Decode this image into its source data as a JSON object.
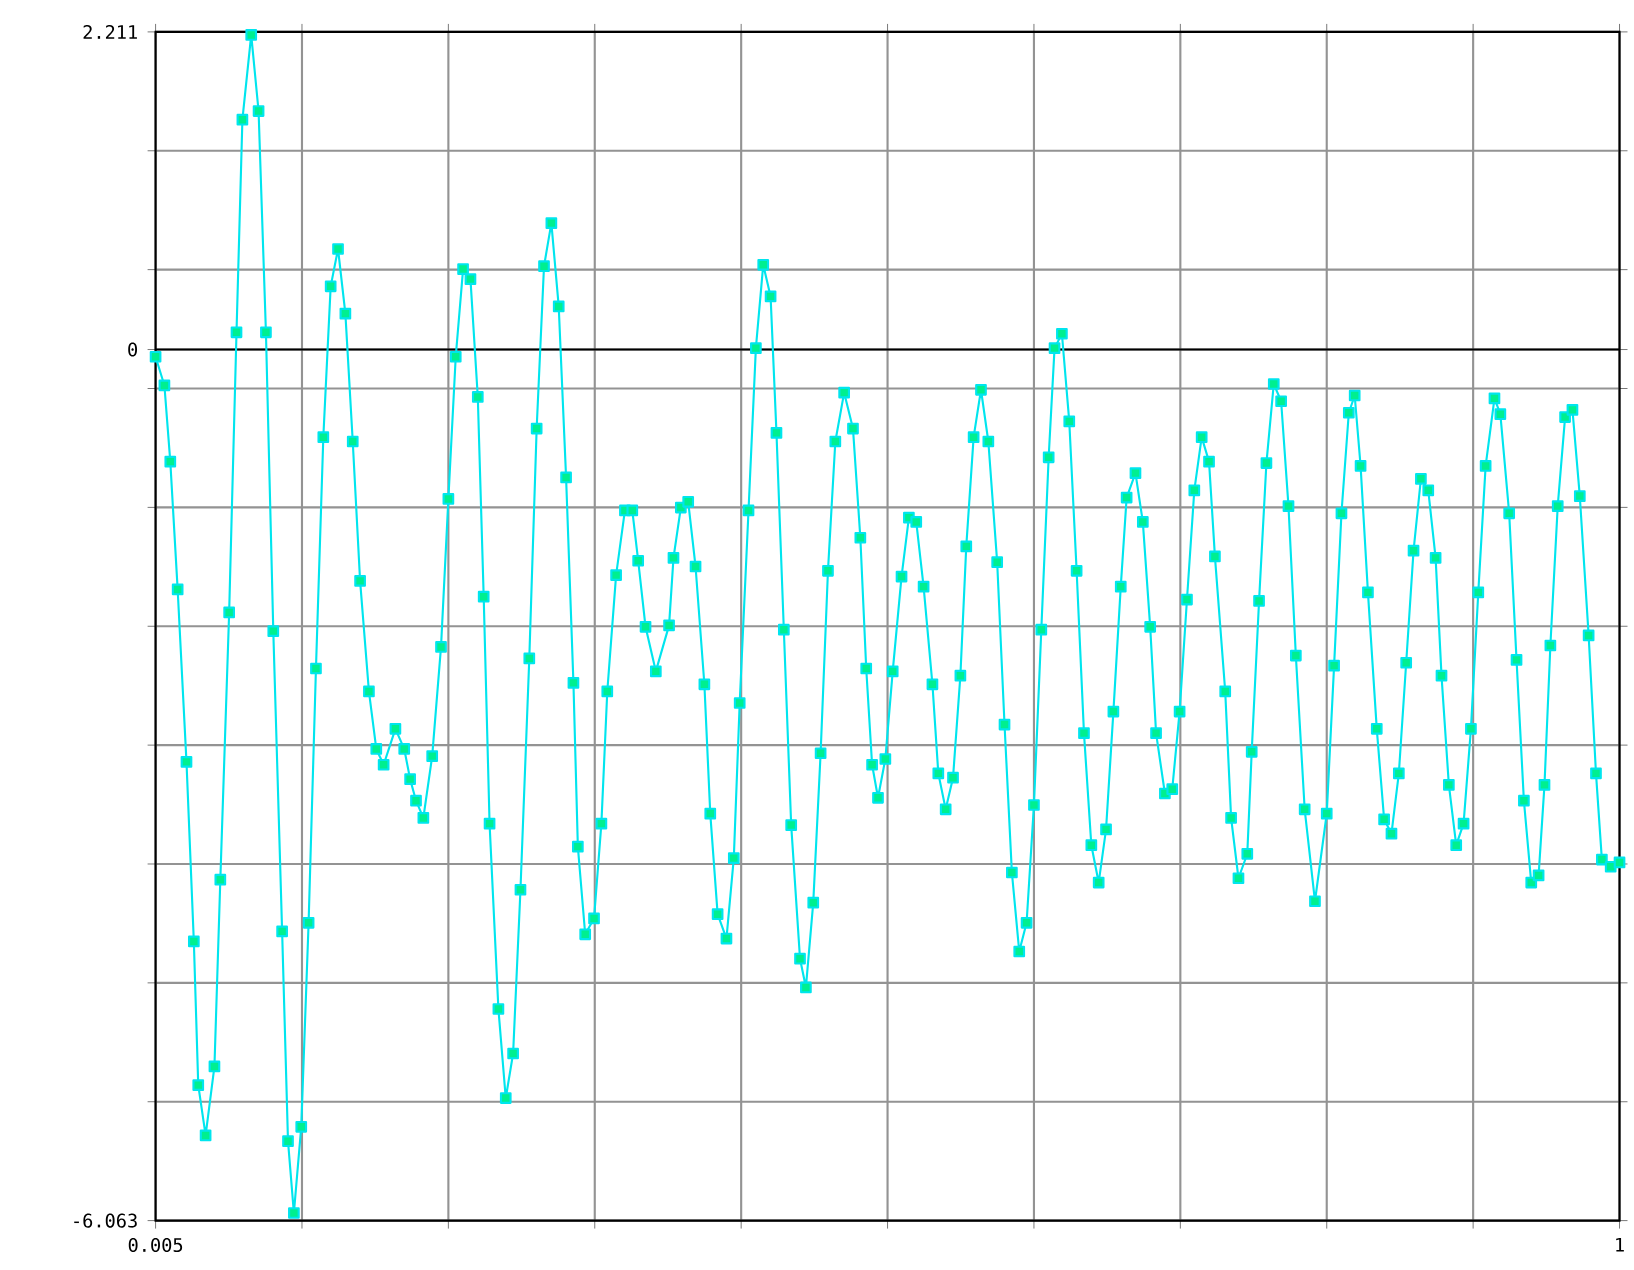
{
  "chart_data": {
    "type": "line",
    "color": "#00e5ee",
    "marker": "square",
    "line_style": "solid",
    "grid": true,
    "xlim": [
      0.005,
      1
    ],
    "ylim": [
      -6.063,
      2.211
    ],
    "xticks": [
      0.005,
      {
        "value": 0.1045,
        "label": null
      },
      {
        "value": 0.204,
        "label": null
      },
      {
        "value": 0.3035,
        "label": null
      },
      {
        "value": 0.403,
        "label": null
      },
      {
        "value": 0.5025,
        "label": null
      },
      {
        "value": 0.602,
        "label": null
      },
      {
        "value": 0.7015,
        "label": null
      },
      {
        "value": 0.801,
        "label": null
      },
      {
        "value": 0.9005,
        "label": null
      },
      1
    ],
    "yticks": [
      -6.063,
      {
        "value": -5.2356,
        "label": null
      },
      {
        "value": -4.4082,
        "label": null
      },
      {
        "value": -3.5808,
        "label": null
      },
      {
        "value": -2.7534,
        "label": null
      },
      {
        "value": -1.926,
        "label": null
      },
      {
        "value": -1.0986,
        "label": null
      },
      {
        "value": -0.2712,
        "label": null
      },
      0,
      {
        "value": 0.5562,
        "label": null
      },
      {
        "value": 1.3836,
        "label": null
      },
      2.211
    ],
    "ref_lines": [
      {
        "axis": "y",
        "value": 0,
        "color": "#000000"
      }
    ],
    "x": [
      0.005,
      0.011,
      0.015,
      0.02,
      0.026,
      0.031,
      0.034,
      0.039,
      0.045,
      0.049,
      0.055,
      0.06,
      0.064,
      0.07,
      0.075,
      0.08,
      0.085,
      0.091,
      0.095,
      0.099,
      0.104,
      0.109,
      0.114,
      0.119,
      0.124,
      0.129,
      0.134,
      0.139,
      0.144,
      0.15,
      0.155,
      0.16,
      0.168,
      0.174,
      0.178,
      0.182,
      0.187,
      0.193,
      0.199,
      0.204,
      0.209,
      0.214,
      0.219,
      0.224,
      0.228,
      0.232,
      0.238,
      0.243,
      0.248,
      0.253,
      0.259,
      0.264,
      0.269,
      0.274,
      0.279,
      0.284,
      0.289,
      0.292,
      0.297,
      0.303,
      0.308,
      0.312,
      0.318,
      0.324,
      0.329,
      0.333,
      0.338,
      0.345,
      0.354,
      0.357,
      0.362,
      0.367,
      0.372,
      0.378,
      0.382,
      0.387,
      0.393,
      0.398,
      0.402,
      0.408,
      0.413,
      0.418,
      0.423,
      0.427,
      0.432,
      0.437,
      0.443,
      0.447,
      0.452,
      0.457,
      0.462,
      0.467,
      0.473,
      0.479,
      0.484,
      0.488,
      0.492,
      0.496,
      0.501,
      0.506,
      0.512,
      0.517,
      0.522,
      0.527,
      0.533,
      0.537,
      0.542,
      0.547,
      0.552,
      0.556,
      0.561,
      0.566,
      0.571,
      0.577,
      0.582,
      0.587,
      0.592,
      0.597,
      0.602,
      0.607,
      0.612,
      0.616,
      0.621,
      0.626,
      0.631,
      0.636,
      0.641,
      0.646,
      0.651,
      0.656,
      0.661,
      0.665,
      0.671,
      0.676,
      0.681,
      0.685,
      0.691,
      0.696,
      0.701,
      0.706,
      0.711,
      0.716,
      0.721,
      0.725,
      0.732,
      0.736,
      0.741,
      0.747,
      0.75,
      0.755,
      0.76,
      0.765,
      0.77,
      0.775,
      0.78,
      0.786,
      0.793,
      0.801,
      0.806,
      0.811,
      0.816,
      0.82,
      0.824,
      0.829,
      0.835,
      0.84,
      0.845,
      0.85,
      0.855,
      0.86,
      0.865,
      0.87,
      0.875,
      0.879,
      0.884,
      0.889,
      0.894,
      0.899,
      0.904,
      0.909,
      0.915,
      0.919,
      0.925,
      0.93,
      0.935,
      0.94,
      0.945,
      0.949,
      0.953,
      0.958,
      0.963,
      0.968,
      0.973,
      0.979,
      0.984,
      0.988,
      0.994,
      1.0
    ],
    "values": [
      -0.05,
      -0.25,
      -0.78,
      -1.67,
      -2.87,
      -4.12,
      -5.12,
      -5.47,
      -4.99,
      -3.69,
      -1.83,
      0.12,
      1.6,
      2.19,
      1.66,
      0.12,
      -1.96,
      -4.05,
      -5.51,
      -6.01,
      -5.41,
      -3.99,
      -2.22,
      -0.61,
      0.44,
      0.7,
      0.25,
      -0.64,
      -1.61,
      -2.38,
      -2.78,
      -2.89,
      -2.64,
      -2.78,
      -2.99,
      -3.14,
      -3.26,
      -2.83,
      -2.07,
      -1.04,
      -0.05,
      0.56,
      0.49,
      -0.33,
      -1.72,
      -3.3,
      -4.59,
      -5.21,
      -4.9,
      -3.76,
      -2.15,
      -0.55,
      0.58,
      0.88,
      0.3,
      -0.89,
      -2.32,
      -3.46,
      -4.07,
      -3.96,
      -3.3,
      -2.38,
      -1.57,
      -1.12,
      -1.12,
      -1.47,
      -1.93,
      -2.24,
      -1.92,
      -1.45,
      -1.1,
      -1.06,
      -1.51,
      -2.33,
      -3.23,
      -3.93,
      -4.1,
      -3.54,
      -2.46,
      -1.12,
      0.01,
      0.59,
      0.37,
      -0.58,
      -1.95,
      -3.31,
      -4.24,
      -4.44,
      -3.85,
      -2.81,
      -1.54,
      -0.64,
      -0.3,
      -0.55,
      -1.31,
      -2.22,
      -2.89,
      -3.12,
      -2.85,
      -2.24,
      -1.58,
      -1.17,
      -1.2,
      -1.65,
      -2.33,
      -2.95,
      -3.2,
      -2.98,
      -2.27,
      -1.37,
      -0.61,
      -0.28,
      -0.64,
      -1.48,
      -2.61,
      -3.64,
      -4.19,
      -3.99,
      -3.17,
      -1.95,
      -0.75,
      0.01,
      0.11,
      -0.5,
      -1.54,
      -2.67,
      -3.45,
      -3.71,
      -3.34,
      -2.52,
      -1.65,
      -1.03,
      -0.86,
      -1.2,
      -1.93,
      -2.67,
      -3.09,
      -3.06,
      -2.52,
      -1.74,
      -0.98,
      -0.61,
      -0.78,
      -1.44,
      -2.38,
      -3.26,
      -3.68,
      -3.51,
      -2.8,
      -1.75,
      -0.79,
      -0.24,
      -0.36,
      -1.09,
      -2.13,
      -3.2,
      -3.84,
      -3.23,
      -2.2,
      -1.14,
      -0.44,
      -0.32,
      -0.81,
      -1.69,
      -2.64,
      -3.27,
      -3.37,
      -2.95,
      -2.18,
      -1.4,
      -0.9,
      -0.98,
      -1.45,
      -2.27,
      -3.03,
      -3.45,
      -3.3,
      -2.64,
      -1.69,
      -0.81,
      -0.34,
      -0.45,
      -1.14,
      -2.16,
      -3.14,
      -3.71,
      -3.66,
      -3.03,
      -2.06,
      -1.09,
      -0.47,
      -0.42,
      -1.02,
      -1.99,
      -2.95,
      -3.55,
      -3.6,
      -3.57
    ]
  }
}
